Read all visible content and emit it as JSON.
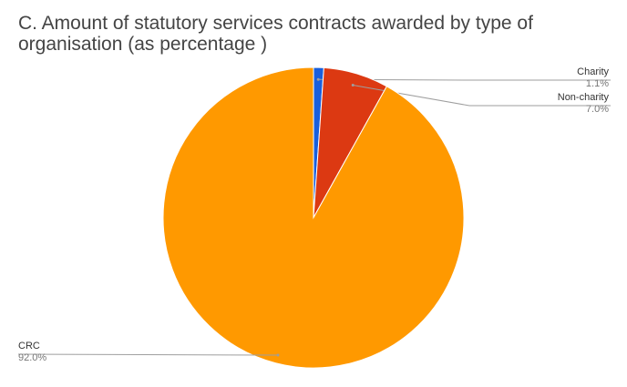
{
  "chart_data": {
    "type": "pie",
    "title": "C. Amount of statutory services contracts awarded by type of organisation (as percentage )",
    "slices": [
      {
        "label": "Charity",
        "value": 1.1,
        "value_label": "1.1%",
        "color": "#1a5fdb",
        "label_side": "right"
      },
      {
        "label": "Non-charity",
        "value": 7.0,
        "value_label": "7.0%",
        "color": "#dc3912",
        "label_side": "right"
      },
      {
        "label": "CRC",
        "value": 92.0,
        "value_label": "92.0%",
        "color": "#ff9900",
        "label_side": "left"
      }
    ],
    "start_angle_deg": 0,
    "direction": "clockwise",
    "legend": "none"
  }
}
